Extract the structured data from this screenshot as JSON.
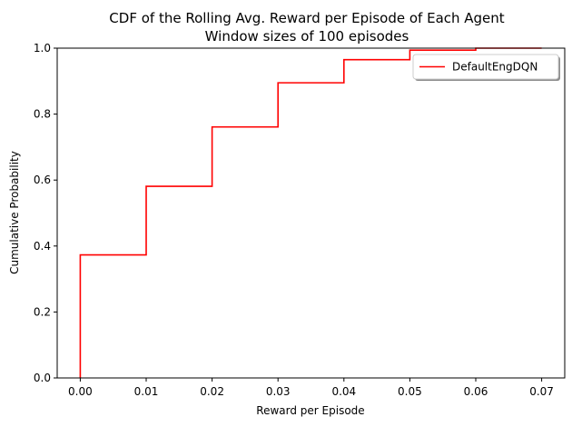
{
  "chart_data": {
    "type": "line",
    "title": "CDF of the Rolling Avg. Reward per Episode of Each Agent",
    "subtitle": "Window sizes of 100 episodes",
    "xlabel": "Reward per Episode",
    "ylabel": "Cumulative Probability",
    "xlim": [
      -0.0035,
      0.0735
    ],
    "ylim": [
      0,
      1.0
    ],
    "x_ticks": [
      0.0,
      0.01,
      0.02,
      0.03,
      0.04,
      0.05,
      0.06,
      0.07
    ],
    "x_tick_labels": [
      "0.00",
      "0.01",
      "0.02",
      "0.03",
      "0.04",
      "0.05",
      "0.06",
      "0.07"
    ],
    "y_ticks": [
      0.0,
      0.2,
      0.4,
      0.6,
      0.8,
      1.0
    ],
    "y_tick_labels": [
      "0.0",
      "0.2",
      "0.4",
      "0.6",
      "0.8",
      "1.0"
    ],
    "grid": false,
    "legend_position": "top-right",
    "step": true,
    "series": [
      {
        "name": "DefaultEngDQN",
        "color": "#ff0000",
        "x": [
          0.0,
          0.0,
          0.01,
          0.01,
          0.02,
          0.02,
          0.03,
          0.03,
          0.04,
          0.04,
          0.05,
          0.05,
          0.06,
          0.06,
          0.07
        ],
        "y": [
          0.0,
          0.373,
          0.373,
          0.581,
          0.581,
          0.761,
          0.761,
          0.895,
          0.895,
          0.965,
          0.965,
          0.994,
          0.994,
          1.0,
          1.0
        ]
      }
    ]
  }
}
